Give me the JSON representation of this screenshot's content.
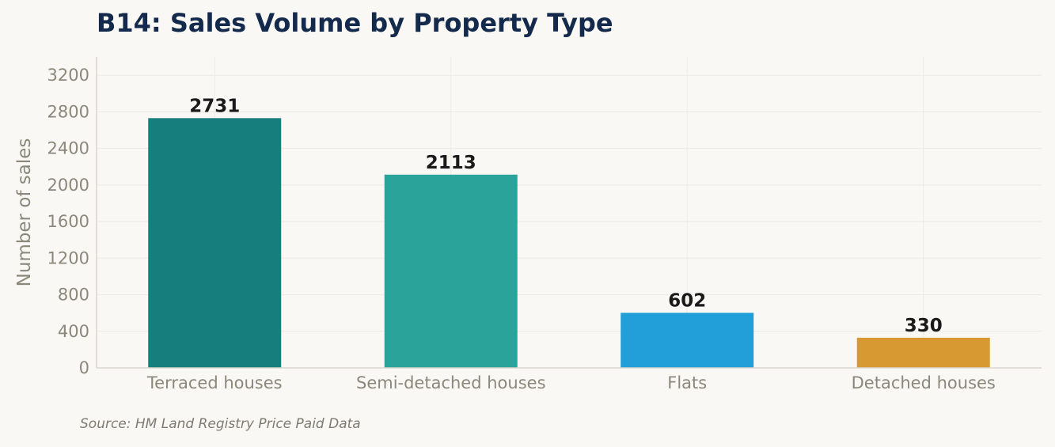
{
  "chart_data": {
    "type": "bar",
    "title": "B14: Sales Volume by Property Type",
    "categories": [
      "Terraced houses",
      "Semi-detached houses",
      "Flats",
      "Detached houses"
    ],
    "values": [
      2731,
      2113,
      602,
      330
    ],
    "data_labels": [
      "2731",
      "2113",
      "602",
      "330"
    ],
    "colors": [
      "#167f7d",
      "#2aa39a",
      "#229ed8",
      "#d79a33"
    ],
    "ylabel": "Number of sales",
    "xlabel": "",
    "ylim": [
      0,
      3400
    ],
    "yticks": [
      0,
      400,
      800,
      1200,
      1600,
      2000,
      2400,
      2800,
      3200
    ],
    "grid": true,
    "legend": "none"
  },
  "source": "Source: HM Land Registry Price Paid Data"
}
